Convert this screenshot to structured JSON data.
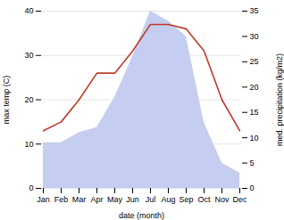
{
  "chart_data": {
    "type": "line",
    "categories": [
      "Jan",
      "Feb",
      "Mar",
      "Apr",
      "May",
      "Jun",
      "Jul",
      "Aug",
      "Sep",
      "Oct",
      "Nov",
      "Dec"
    ],
    "series": [
      {
        "type": "area",
        "axis": "y2",
        "color": "#c5cef0",
        "values": [
          9,
          9,
          11,
          12,
          18,
          26,
          35,
          33,
          30,
          13,
          5,
          3
        ]
      },
      {
        "type": "line",
        "color": "#c0392b",
        "values": [
          13,
          15,
          20,
          26,
          26,
          31,
          37,
          37,
          36,
          31,
          20,
          13
        ]
      }
    ],
    "xlabel": "date (month)",
    "ylabel": "max temp (C)",
    "y2label": "med. precipitation (kg/m2)",
    "ylim": [
      0,
      40
    ],
    "yticks": [
      0,
      10,
      20,
      30,
      40
    ],
    "y2lim": [
      0,
      35
    ],
    "y2ticks": [
      0,
      5,
      10,
      15,
      20,
      25,
      30,
      35
    ],
    "grid": true
  }
}
